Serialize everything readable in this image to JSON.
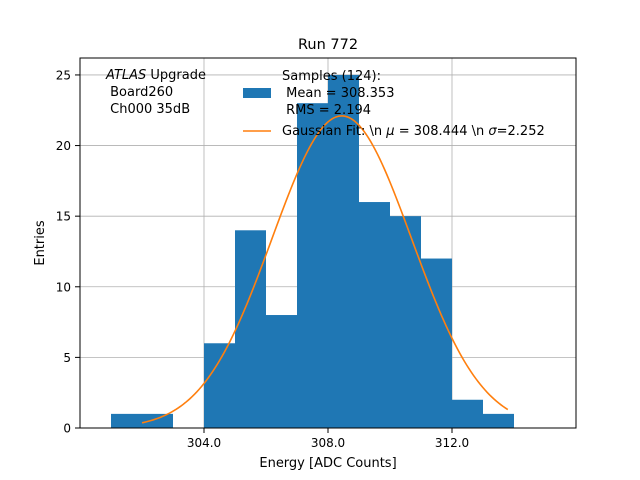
{
  "chart_data": {
    "type": "bar",
    "title": "Run 772",
    "xlabel": "Energy [ADC Counts]",
    "ylabel": "Entries",
    "xlim": [
      300.0,
      316.0
    ],
    "ylim": [
      0,
      26.2
    ],
    "grid": true,
    "x_ticks": [
      304.0,
      308.0,
      312.0
    ],
    "x_tick_labels": [
      "304.0",
      "308.0",
      "312.0"
    ],
    "y_ticks": [
      0,
      5,
      10,
      15,
      20,
      25
    ],
    "y_tick_labels": [
      "0",
      "5",
      "10",
      "15",
      "20",
      "25"
    ],
    "bin_edges": [
      301.0,
      302.0,
      303.0,
      304.0,
      305.0,
      306.0,
      307.0,
      308.0,
      309.0,
      310.0,
      311.0,
      312.0,
      313.0,
      314.0
    ],
    "values": [
      1,
      1,
      0,
      6,
      14,
      8,
      23,
      25,
      16,
      15,
      12,
      2,
      1
    ],
    "bar_color": "#1f77b4",
    "fit": {
      "name": "Gaussian Fit",
      "mu": 308.444,
      "sigma": 2.252,
      "amplitude": 22.1,
      "x_range": [
        302.0,
        313.8
      ],
      "color": "#ff7f0e"
    },
    "annotation": {
      "lines": [
        "ATLAS Upgrade",
        " Board260",
        " Ch000 35dB"
      ],
      "italic_word": "ATLAS",
      "rest_of_first_line": " Upgrade"
    },
    "legend": {
      "position": "top-right",
      "samples_label": "Samples (124):",
      "mean_label": " Mean = 308.353",
      "rms_label": " RMS = 2.194",
      "fit_label_prefix": "Gaussian Fit: \\n ",
      "fit_label_mu_sym": "μ",
      "fit_label_mid": " = 308.444 \\n ",
      "fit_label_sigma_sym": "σ",
      "fit_label_end": "=2.252"
    }
  }
}
